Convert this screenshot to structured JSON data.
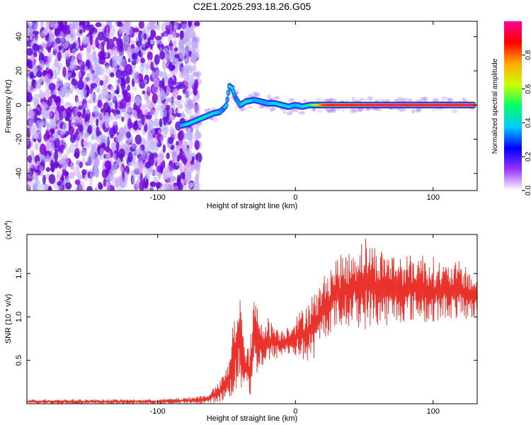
{
  "chart_data": [
    {
      "type": "heatmap",
      "title": "C2E1.2025.293.18.26.G05",
      "xlabel": "Height of straight line (km)",
      "ylabel": "Frequency (Hz)",
      "xlim": [
        -195,
        132
      ],
      "ylim": [
        -50,
        49
      ],
      "x_ticks": [
        -100,
        0,
        100
      ],
      "x_tick_labels": [
        "-100",
        "0",
        "100"
      ],
      "y_ticks": [
        -40,
        -20,
        0,
        20,
        40
      ],
      "y_tick_labels": [
        "-40",
        "-20",
        "0",
        "20",
        "40"
      ],
      "noise_region_x": [
        -195,
        -73
      ],
      "signal_trace": {
        "x": [
          -83,
          -78,
          -72,
          -66,
          -60,
          -55,
          -52,
          -50,
          -48,
          -46,
          -44,
          -40,
          -36,
          -30,
          -25,
          -20,
          -15,
          -10,
          -5,
          0,
          5,
          10,
          20,
          30,
          40,
          60,
          80,
          100,
          115,
          130
        ],
        "y": [
          -12,
          -11,
          -9,
          -7,
          -5,
          -4,
          -2,
          0,
          11,
          10,
          5,
          0,
          2,
          3,
          2,
          1,
          1,
          0,
          -1,
          0,
          -1,
          0,
          0,
          0,
          0,
          0,
          0,
          0,
          0,
          0
        ],
        "amplitude": [
          0.35,
          0.4,
          0.45,
          0.45,
          0.4,
          0.35,
          0.3,
          0.3,
          0.45,
          0.45,
          0.3,
          0.35,
          0.5,
          0.35,
          0.35,
          0.35,
          0.4,
          0.45,
          0.4,
          0.35,
          0.4,
          0.5,
          0.85,
          0.9,
          0.9,
          0.95,
          0.95,
          0.95,
          0.95,
          0.95
        ]
      },
      "colorbar": {
        "label": "Normalized spectral amplitude",
        "range": [
          0,
          1
        ],
        "ticks": [
          0.0,
          0.2,
          0.4,
          0.6,
          0.8
        ],
        "tick_labels": [
          "0.0",
          "0.2",
          "0.4",
          "0.6",
          "0.8"
        ],
        "colors": [
          "#ffffff",
          "#9933ff",
          "#0000ff",
          "#00ccff",
          "#00ff66",
          "#ccff00",
          "#ffaa00",
          "#ff0000",
          "#ff0099"
        ]
      }
    },
    {
      "type": "line",
      "xlabel": "Height of straight line (km)",
      "ylabel": "SNR (10 * v/v)",
      "y_multiplier": "(x10",
      "y_multiplier_exp": "4",
      "y_multiplier_close": ")",
      "xlim": [
        -195,
        132
      ],
      "ylim": [
        0,
        1.95
      ],
      "x_ticks": [
        -100,
        0,
        100
      ],
      "x_tick_labels": [
        "-100",
        "0",
        "100"
      ],
      "y_ticks": [
        0.5,
        1.0,
        1.5
      ],
      "y_tick_labels": [
        "0.5",
        "1.0",
        "1.5"
      ],
      "series": [
        {
          "name": "SNR",
          "color": "#e8322b",
          "envelope": {
            "x": [
              -195,
              -150,
              -100,
              -80,
              -65,
              -55,
              -48,
              -45,
              -40,
              -38,
              -36,
              -33,
              -30,
              -25,
              -20,
              -10,
              0,
              5,
              10,
              15,
              20,
              25,
              30,
              40,
              50,
              60,
              70,
              80,
              90,
              100,
              110,
              120,
              132
            ],
            "lo": [
              0.0,
              0.0,
              0.0,
              0.0,
              0.0,
              0.02,
              0.05,
              0.1,
              0.1,
              0.2,
              0.3,
              0.05,
              0.3,
              0.4,
              0.45,
              0.55,
              0.55,
              0.5,
              0.45,
              0.55,
              0.75,
              0.8,
              0.85,
              0.9,
              0.85,
              0.9,
              0.9,
              0.95,
              0.95,
              0.9,
              1.0,
              0.95,
              1.0
            ],
            "hi": [
              0.05,
              0.05,
              0.05,
              0.07,
              0.1,
              0.25,
              0.5,
              1.0,
              1.4,
              0.8,
              0.6,
              0.7,
              1.25,
              1.0,
              1.0,
              0.85,
              1.0,
              1.1,
              1.25,
              1.3,
              1.45,
              1.6,
              1.7,
              1.75,
              1.95,
              1.8,
              1.75,
              1.7,
              1.75,
              1.7,
              1.6,
              1.65,
              1.45
            ]
          }
        }
      ]
    }
  ]
}
